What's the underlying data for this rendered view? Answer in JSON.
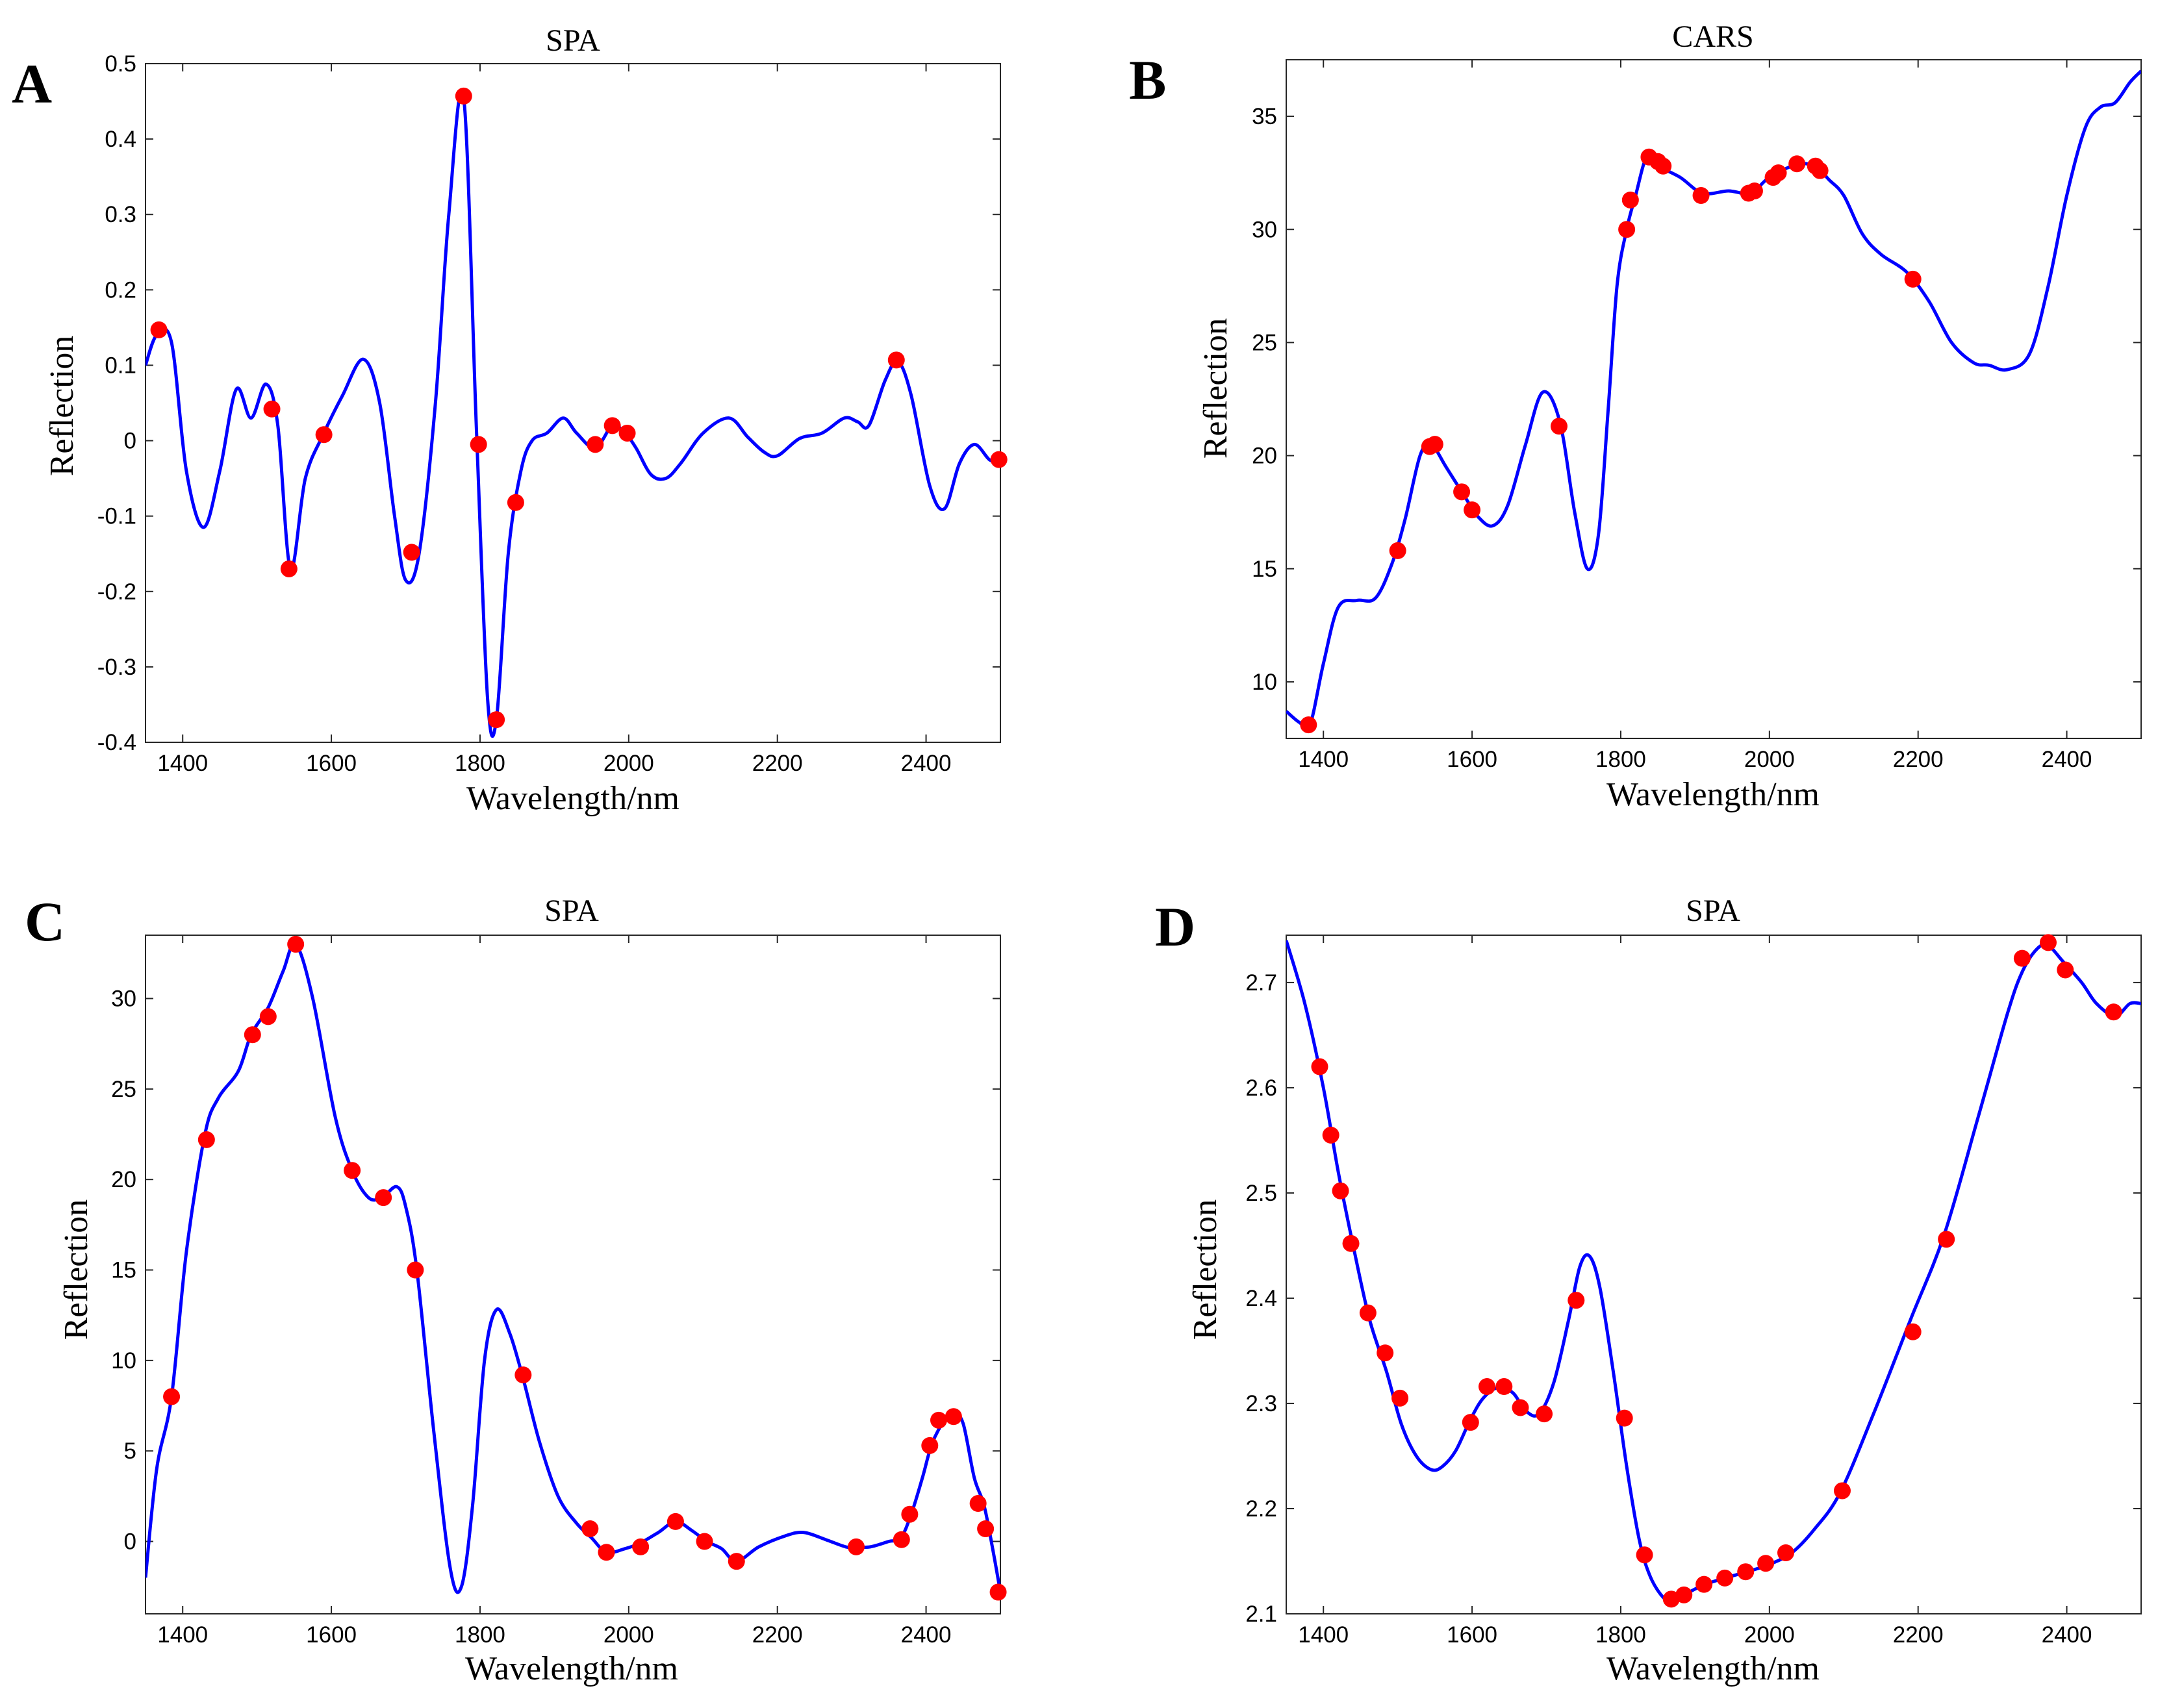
{
  "chart_data": [
    {
      "panel": "A",
      "type": "line",
      "title": "SPA",
      "xlabel": "Wavelength/nm",
      "ylabel": "Reflection",
      "xlim": [
        1350,
        2500
      ],
      "ylim": [
        -0.4,
        0.5
      ],
      "xticks": [
        1400,
        1600,
        1800,
        2000,
        2200,
        2400
      ],
      "yticks": [
        -0.4,
        -0.3,
        -0.2,
        -0.1,
        0,
        0.1,
        0.2,
        0.3,
        0.4,
        0.5
      ],
      "ytick_labels": [
        "-0.4",
        "-0.3",
        "-0.2",
        "-0.1",
        "0",
        "0.1",
        "0.2",
        "0.3",
        "0.4",
        "0.5"
      ],
      "series": [
        {
          "name": "spectrum",
          "color": "#0000ff",
          "x": [
            1350,
            1365,
            1385,
            1405,
            1428,
            1450,
            1472,
            1492,
            1512,
            1528,
            1545,
            1565,
            1590,
            1615,
            1643,
            1665,
            1685,
            1700,
            1718,
            1740,
            1758,
            1778,
            1795,
            1810,
            1822,
            1838,
            1855,
            1870,
            1890,
            1912,
            1930,
            1955,
            1978,
            1995,
            2010,
            2030,
            2050,
            2070,
            2100,
            2135,
            2160,
            2182,
            2200,
            2230,
            2260,
            2290,
            2308,
            2323,
            2345,
            2362,
            2380,
            2405,
            2425,
            2445,
            2465,
            2485,
            2500
          ],
          "y": [
            0.1,
            0.14,
            0.13,
            -0.04,
            -0.115,
            -0.04,
            0.068,
            0.03,
            0.075,
            0.02,
            -0.17,
            -0.05,
            0.01,
            0.06,
            0.108,
            0.05,
            -0.1,
            -0.185,
            -0.15,
            0.05,
            0.3,
            0.455,
            0.02,
            -0.34,
            -0.37,
            -0.15,
            -0.04,
            0,
            0.01,
            0.03,
            0.01,
            -0.01,
            0.02,
            0.01,
            -0.01,
            -0.045,
            -0.05,
            -0.03,
            0.01,
            0.03,
            0.005,
            -0.015,
            -0.02,
            0.003,
            0.01,
            0.03,
            0.025,
            0.02,
            0.08,
            0.105,
            0.06,
            -0.06,
            -0.09,
            -0.03,
            -0.005,
            -0.025,
            -0.03
          ]
        },
        {
          "name": "selected",
          "color": "#ff0000",
          "x": [
            1368,
            1520,
            1543,
            1590,
            1708,
            1778,
            1798,
            1822,
            1848,
            1955,
            1978,
            1998,
            2360,
            2498
          ],
          "y": [
            0.147,
            0.042,
            -0.17,
            0.008,
            -0.148,
            0.457,
            -0.005,
            -0.37,
            -0.082,
            -0.005,
            0.02,
            0.01,
            0.107,
            -0.025
          ]
        }
      ]
    },
    {
      "panel": "B",
      "type": "line",
      "title": "CARS",
      "xlabel": "Wavelength/nm",
      "ylabel": "Reflection",
      "xlim": [
        1350,
        2500
      ],
      "ylim": [
        7.5,
        37.5
      ],
      "xticks": [
        1400,
        1600,
        1800,
        2000,
        2200,
        2400
      ],
      "yticks": [
        10,
        15,
        20,
        25,
        30,
        35
      ],
      "ytick_labels": [
        "10",
        "15",
        "20",
        "25",
        "30",
        "35"
      ],
      "series": [
        {
          "name": "spectrum",
          "color": "#0000ff",
          "x": [
            1350,
            1368,
            1382,
            1400,
            1420,
            1445,
            1470,
            1492,
            1510,
            1530,
            1545,
            1565,
            1590,
            1608,
            1628,
            1648,
            1672,
            1695,
            1718,
            1738,
            1755,
            1770,
            1783,
            1795,
            1808,
            1820,
            1835,
            1850,
            1880,
            1910,
            1945,
            1975,
            2000,
            2040,
            2065,
            2080,
            2100,
            2125,
            2150,
            2185,
            2215,
            2245,
            2275,
            2295,
            2320,
            2350,
            2375,
            2400,
            2425,
            2445,
            2465,
            2485,
            2500
          ],
          "y": [
            8.7,
            8.2,
            8.1,
            10.8,
            13.3,
            13.6,
            13.7,
            15.2,
            17.2,
            20,
            20.5,
            19.5,
            18.2,
            17.3,
            16.9,
            17.8,
            20.5,
            22.8,
            21.5,
            17.5,
            15,
            16.5,
            22,
            27.5,
            30,
            31.5,
            33.2,
            32.8,
            32.3,
            31.6,
            31.7,
            31.6,
            32.3,
            32.9,
            32.7,
            32.2,
            31.5,
            29.8,
            28.9,
            28.1,
            26.8,
            25,
            24.1,
            24,
            23.8,
            24.5,
            27.5,
            31.5,
            34.5,
            35.4,
            35.6,
            36.5,
            37
          ]
        },
        {
          "name": "selected",
          "color": "#ff0000",
          "x": [
            1380,
            1500,
            1543,
            1550,
            1586,
            1600,
            1717,
            1808,
            1813,
            1838,
            1850,
            1857,
            1908,
            1972,
            1980,
            2005,
            2012,
            2037,
            2062,
            2068,
            2193
          ],
          "y": [
            8.1,
            15.8,
            20.4,
            20.5,
            18.4,
            17.6,
            21.3,
            30,
            31.3,
            33.2,
            33.0,
            32.8,
            31.5,
            31.6,
            31.7,
            32.3,
            32.5,
            32.9,
            32.8,
            32.6,
            27.8
          ]
        }
      ]
    },
    {
      "panel": "C",
      "type": "line",
      "title": "SPA",
      "xlabel": "Wavelength/nm",
      "ylabel": "Reflection",
      "xlim": [
        1350,
        2500
      ],
      "ylim": [
        -4,
        33.5
      ],
      "xticks": [
        1400,
        1600,
        1800,
        2000,
        2200,
        2400
      ],
      "yticks": [
        0,
        5,
        10,
        15,
        20,
        25,
        30
      ],
      "ytick_labels": [
        "0",
        "5",
        "10",
        "15",
        "20",
        "25",
        "30"
      ],
      "series": [
        {
          "name": "spectrum",
          "color": "#0000ff",
          "x": [
            1350,
            1365,
            1385,
            1405,
            1430,
            1448,
            1475,
            1492,
            1515,
            1535,
            1552,
            1575,
            1605,
            1628,
            1650,
            1668,
            1688,
            1700,
            1715,
            1738,
            1760,
            1775,
            1790,
            1806,
            1822,
            1840,
            1858,
            1880,
            1905,
            1930,
            1950,
            1970,
            1995,
            2015,
            2040,
            2063,
            2085,
            2105,
            2125,
            2145,
            2175,
            2210,
            2235,
            2265,
            2292,
            2305,
            2325,
            2350,
            2366,
            2380,
            2395,
            2408,
            2425,
            2438,
            2450,
            2465,
            2478,
            2490,
            2500
          ],
          "y": [
            -2,
            4,
            8,
            16,
            22.5,
            24.5,
            26,
            28,
            29.5,
            31.5,
            33,
            30,
            23.5,
            20.5,
            19,
            19,
            19.6,
            18.5,
            15,
            6,
            -1.5,
            -2.5,
            2,
            10,
            12.8,
            11.5,
            9,
            5.5,
            2.5,
            1,
            0.2,
            -0.6,
            -0.4,
            -0.1,
            0.5,
            1.1,
            0.6,
            0,
            -0.4,
            -1.1,
            -0.3,
            0.3,
            0.5,
            0.1,
            -0.3,
            -0.3,
            -0.3,
            0,
            0.2,
            1.5,
            3.5,
            5.4,
            6.7,
            7,
            6.5,
            3.5,
            2,
            -0.5,
            -2.8
          ]
        },
        {
          "name": "selected",
          "color": "#ff0000",
          "x": [
            1385,
            1432,
            1494,
            1515,
            1552,
            1628,
            1670,
            1713,
            1858,
            1948,
            1970,
            2016,
            2063,
            2102,
            2145,
            2306,
            2367,
            2378,
            2405,
            2417,
            2437,
            2470,
            2480,
            2497
          ],
          "y": [
            8,
            22.2,
            28,
            29,
            33,
            20.5,
            19,
            15,
            9.2,
            0.7,
            -0.6,
            -0.3,
            1.1,
            0,
            -1.1,
            -0.3,
            0.1,
            1.5,
            5.3,
            6.7,
            6.9,
            2.1,
            0.7,
            -2.8
          ]
        }
      ]
    },
    {
      "panel": "D",
      "type": "line",
      "title": "SPA",
      "xlabel": "Wavelength/nm",
      "ylabel": "Reflection",
      "xlim": [
        1350,
        2500
      ],
      "ylim": [
        2.1,
        2.745
      ],
      "xticks": [
        1400,
        1600,
        1800,
        2000,
        2200,
        2400
      ],
      "yticks": [
        2.1,
        2.2,
        2.3,
        2.4,
        2.5,
        2.6,
        2.7
      ],
      "ytick_labels": [
        "2.1",
        "2.2",
        "2.3",
        "2.4",
        "2.5",
        "2.6",
        "2.7"
      ],
      "series": [
        {
          "name": "spectrum",
          "color": "#0000ff",
          "x": [
            1350,
            1375,
            1400,
            1420,
            1440,
            1462,
            1485,
            1505,
            1525,
            1545,
            1560,
            1578,
            1598,
            1615,
            1635,
            1655,
            1672,
            1690,
            1710,
            1730,
            1745,
            1758,
            1772,
            1790,
            1808,
            1825,
            1840,
            1858,
            1870,
            1885,
            1910,
            1940,
            1970,
            2000,
            2030,
            2060,
            2095,
            2140,
            2190,
            2235,
            2280,
            2320,
            2340,
            2360,
            2375,
            2395,
            2420,
            2440,
            2465,
            2485,
            2500
          ],
          "y": [
            2.74,
            2.68,
            2.6,
            2.52,
            2.45,
            2.38,
            2.33,
            2.28,
            2.25,
            2.237,
            2.24,
            2.255,
            2.285,
            2.305,
            2.315,
            2.31,
            2.293,
            2.29,
            2.32,
            2.38,
            2.43,
            2.44,
            2.41,
            2.33,
            2.24,
            2.17,
            2.135,
            2.115,
            2.114,
            2.118,
            2.127,
            2.134,
            2.14,
            2.147,
            2.158,
            2.18,
            2.215,
            2.29,
            2.38,
            2.46,
            2.57,
            2.67,
            2.71,
            2.732,
            2.735,
            2.72,
            2.7,
            2.68,
            2.668,
            2.68,
            2.68
          ]
        },
        {
          "name": "selected",
          "color": "#ff0000",
          "x": [
            1395,
            1410,
            1423,
            1437,
            1460,
            1483,
            1503,
            1598,
            1620,
            1643,
            1665,
            1697,
            1740,
            1805,
            1832,
            1868,
            1885,
            1912,
            1940,
            1968,
            1995,
            2022,
            2098,
            2193,
            2238,
            2340,
            2375,
            2398,
            2463
          ],
          "y": [
            2.62,
            2.555,
            2.502,
            2.452,
            2.386,
            2.348,
            2.305,
            2.282,
            2.316,
            2.316,
            2.296,
            2.29,
            2.398,
            2.286,
            2.156,
            2.114,
            2.118,
            2.128,
            2.134,
            2.14,
            2.148,
            2.158,
            2.217,
            2.368,
            2.456,
            2.723,
            2.738,
            2.712,
            2.672
          ]
        }
      ]
    }
  ],
  "panel_letters": {
    "a": "A",
    "b": "B",
    "c": "C",
    "d": "D"
  },
  "titles": {
    "a": "SPA",
    "b": "CARS",
    "c": "SPA",
    "d": "SPA"
  },
  "xlabels": {
    "a": "Wavelength/nm",
    "b": "Wavelength/nm",
    "c": "Wavelength/nm",
    "d": "Wavelength/nm"
  },
  "ylabels": {
    "a": "Reflection",
    "b": "Reflection",
    "c": "Reflection",
    "d": "Reflection"
  },
  "colors": {
    "curve": "#0000ff",
    "points": "#ff0000"
  }
}
